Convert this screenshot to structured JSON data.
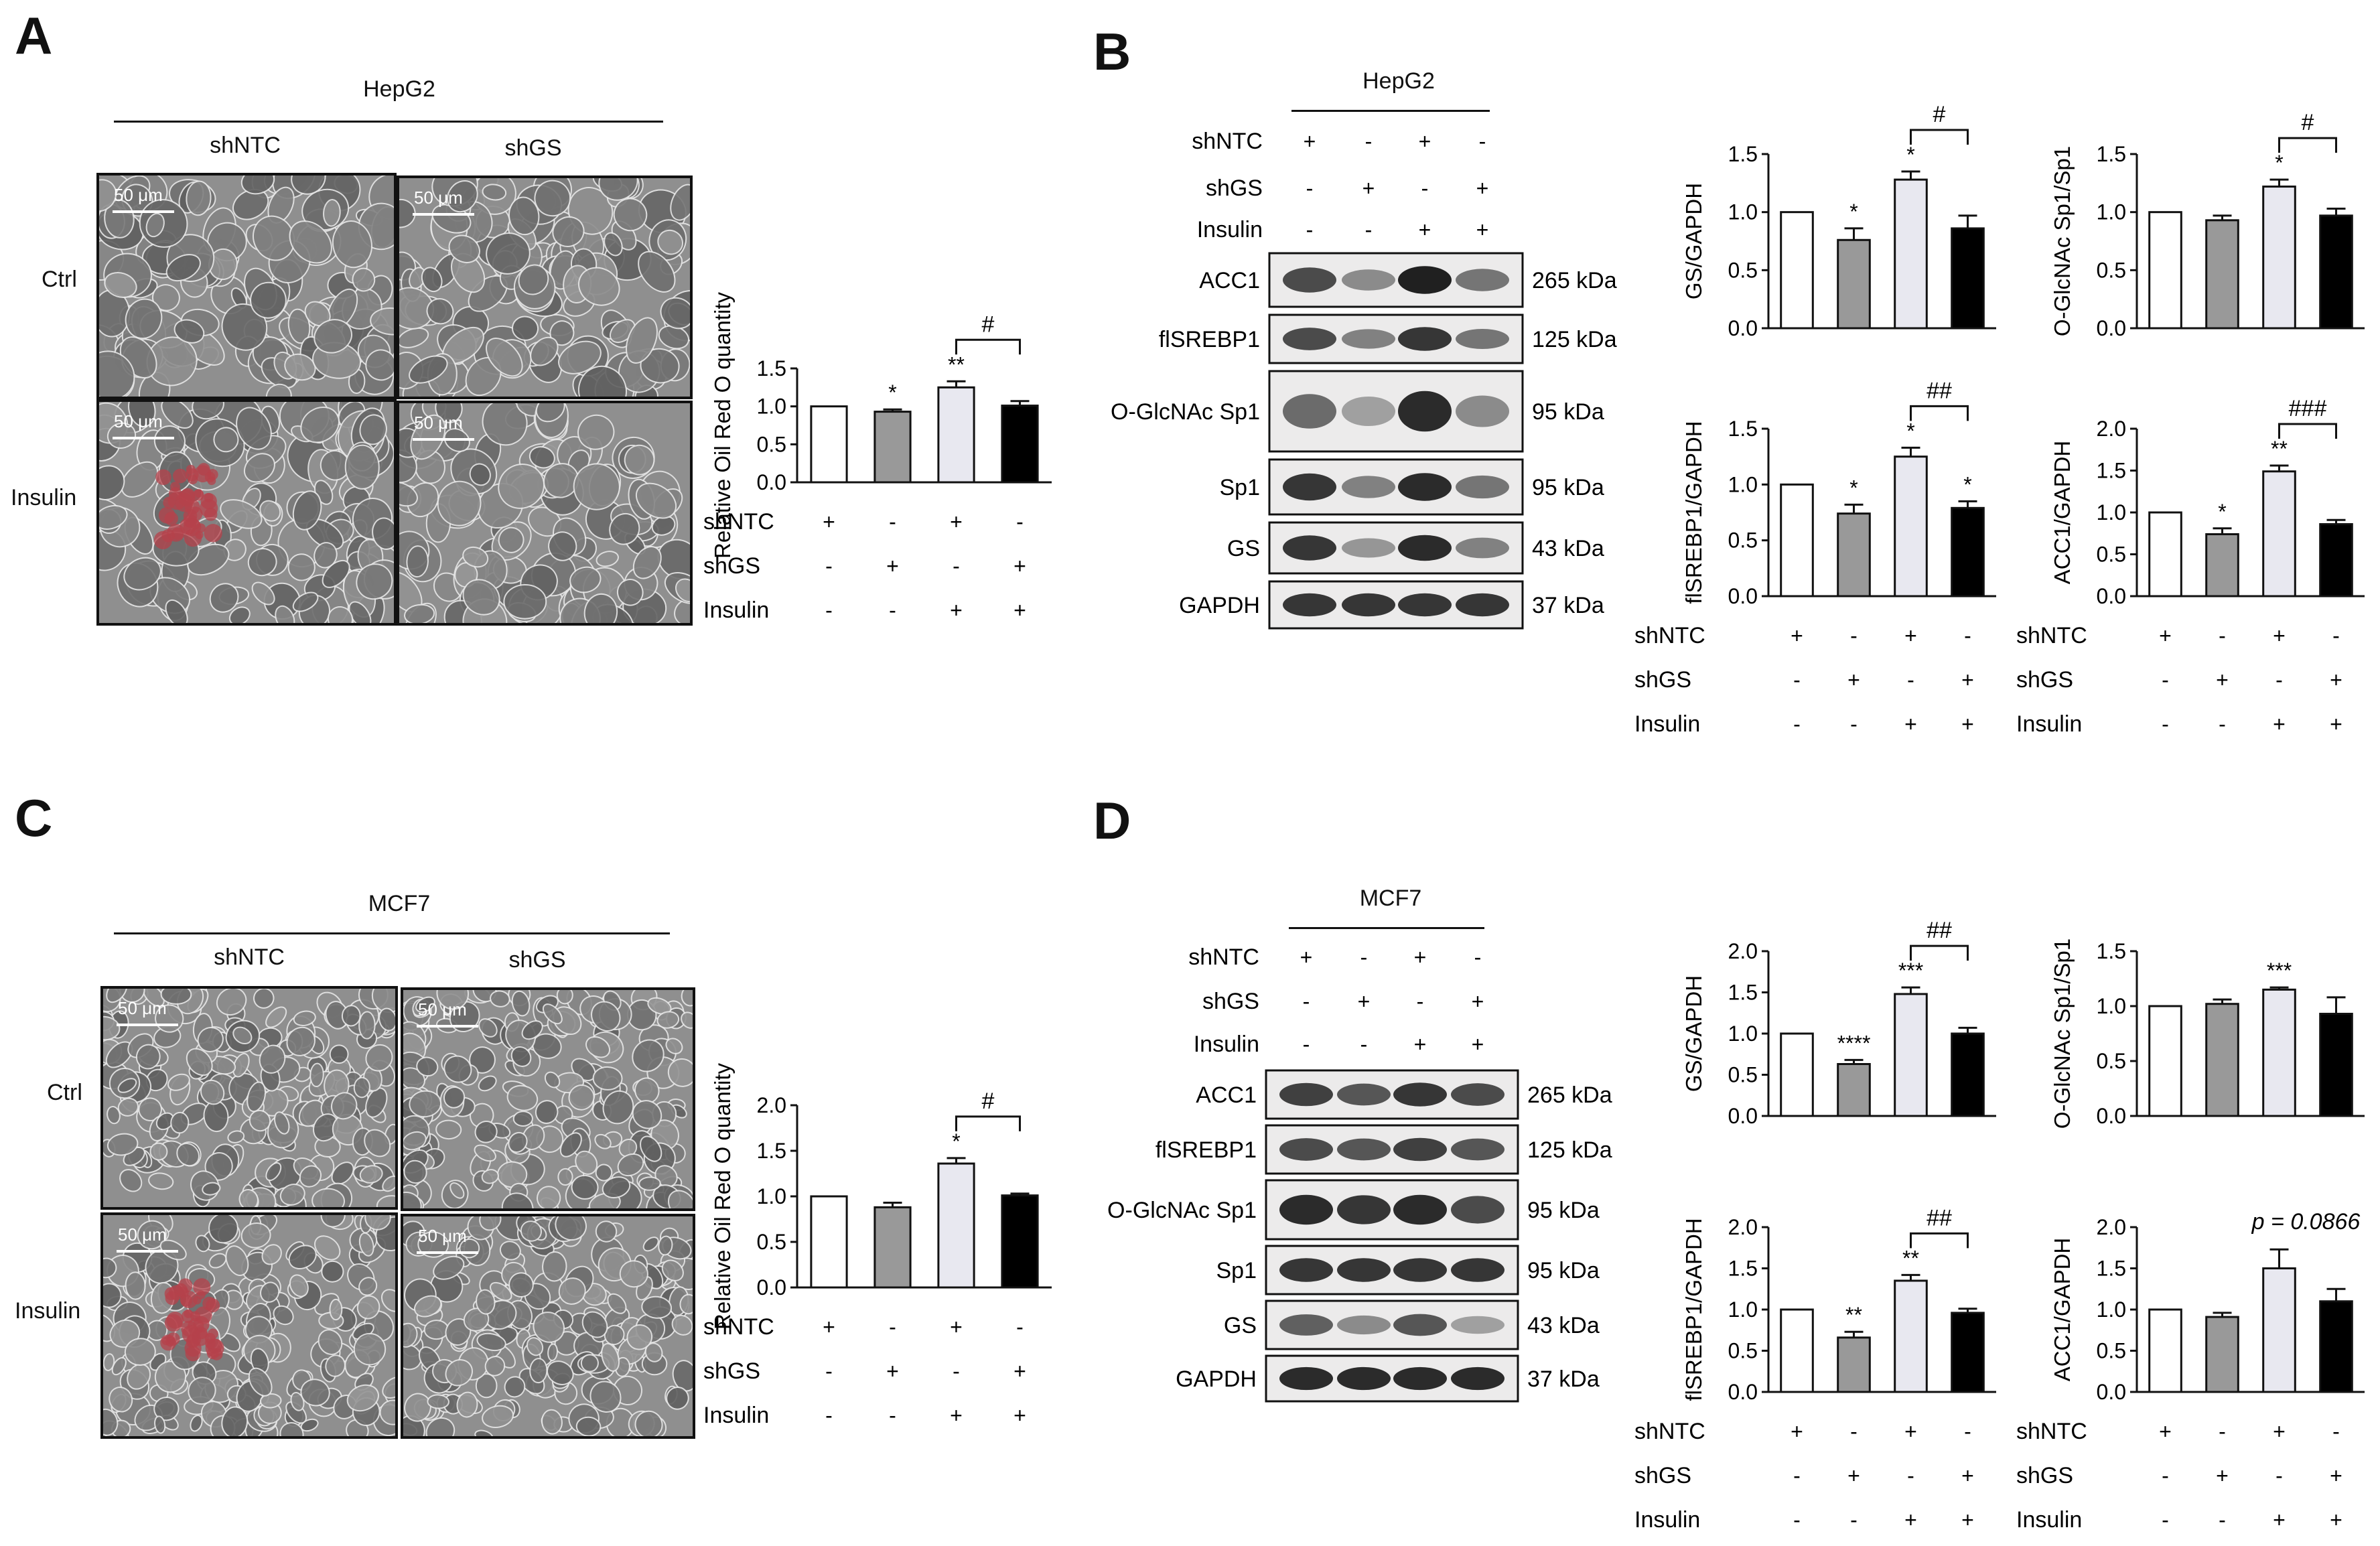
{
  "panels": {
    "A": {
      "letter": "A",
      "cell_line": "HepG2",
      "columns": [
        "shNTC",
        "shGS"
      ],
      "rows": [
        "Ctrl",
        "Insulin"
      ],
      "scale_bar": "50 μm"
    },
    "B": {
      "letter": "B",
      "cell_line": "HepG2",
      "conditions": [
        {
          "name": "shNTC",
          "signs": [
            "+",
            "-",
            "+",
            "-"
          ]
        },
        {
          "name": "shGS",
          "signs": [
            "-",
            "+",
            "-",
            "+"
          ]
        },
        {
          "name": "Insulin",
          "signs": [
            "-",
            "-",
            "+",
            "+"
          ]
        }
      ],
      "blots": [
        {
          "protein": "ACC1",
          "mw": "265 kDa",
          "intensity": [
            0.75,
            0.45,
            0.95,
            0.55
          ]
        },
        {
          "protein": "flSREBP1",
          "mw": "125 kDa",
          "intensity": [
            0.75,
            0.5,
            0.85,
            0.55
          ]
        },
        {
          "protein": "O-GlcNAc Sp1",
          "mw": "95 kDa",
          "intensity": [
            0.6,
            0.35,
            0.9,
            0.45
          ]
        },
        {
          "protein": "Sp1",
          "mw": "95 kDa",
          "intensity": [
            0.85,
            0.5,
            0.9,
            0.55
          ]
        },
        {
          "protein": "GS",
          "mw": "43 kDa",
          "intensity": [
            0.85,
            0.4,
            0.9,
            0.5
          ]
        },
        {
          "protein": "GAPDH",
          "mw": "37 kDa",
          "intensity": [
            0.85,
            0.85,
            0.85,
            0.85
          ]
        }
      ]
    },
    "C": {
      "letter": "C",
      "cell_line": "MCF7",
      "columns": [
        "shNTC",
        "shGS"
      ],
      "rows": [
        "Ctrl",
        "Insulin"
      ],
      "scale_bar": "50 μm"
    },
    "D": {
      "letter": "D",
      "cell_line": "MCF7",
      "conditions": [
        {
          "name": "shNTC",
          "signs": [
            "+",
            "-",
            "+",
            "-"
          ]
        },
        {
          "name": "shGS",
          "signs": [
            "-",
            "+",
            "-",
            "+"
          ]
        },
        {
          "name": "Insulin",
          "signs": [
            "-",
            "-",
            "+",
            "+"
          ]
        }
      ],
      "blots": [
        {
          "protein": "ACC1",
          "mw": "265 kDa",
          "intensity": [
            0.8,
            0.7,
            0.85,
            0.75
          ]
        },
        {
          "protein": "flSREBP1",
          "mw": "125 kDa",
          "intensity": [
            0.75,
            0.7,
            0.8,
            0.7
          ]
        },
        {
          "protein": "O-GlcNAc Sp1",
          "mw": "95 kDa",
          "intensity": [
            0.9,
            0.85,
            0.9,
            0.75
          ]
        },
        {
          "protein": "Sp1",
          "mw": "95 kDa",
          "intensity": [
            0.85,
            0.85,
            0.85,
            0.85
          ]
        },
        {
          "protein": "GS",
          "mw": "43 kDa",
          "intensity": [
            0.65,
            0.45,
            0.7,
            0.35
          ]
        },
        {
          "protein": "GAPDH",
          "mw": "37 kDa",
          "intensity": [
            0.9,
            0.9,
            0.9,
            0.9
          ]
        }
      ]
    }
  },
  "chart_data": [
    {
      "id": "A-oro",
      "type": "bar",
      "ylabel": "Relative Oil Red O quantity",
      "ylim": [
        0,
        1.5
      ],
      "yticks": [
        "0.0",
        "0.5",
        "1.0",
        "1.5"
      ],
      "values": [
        1.0,
        0.93,
        1.25,
        1.01
      ],
      "errors": [
        0,
        0.03,
        0.08,
        0.06
      ],
      "stars": [
        "",
        "*",
        "**",
        ""
      ],
      "bracket": "#",
      "conditions": [
        {
          "name": "shNTC",
          "signs": [
            "+",
            "-",
            "+",
            "-"
          ]
        },
        {
          "name": "shGS",
          "signs": [
            "-",
            "+",
            "-",
            "+"
          ]
        },
        {
          "name": "Insulin",
          "signs": [
            "-",
            "-",
            "+",
            "+"
          ]
        }
      ]
    },
    {
      "id": "B-gs",
      "type": "bar",
      "ylabel": "GS/GAPDH",
      "ylim": [
        0,
        1.5
      ],
      "yticks": [
        "0.0",
        "0.5",
        "1.0",
        "1.5"
      ],
      "values": [
        1.0,
        0.76,
        1.28,
        0.86
      ],
      "errors": [
        0,
        0.1,
        0.07,
        0.11
      ],
      "stars": [
        "",
        "*",
        "*",
        ""
      ],
      "bracket": "#",
      "conditions": []
    },
    {
      "id": "B-oglc",
      "type": "bar",
      "ylabel": "O-GlcNAc Sp1/Sp1",
      "ylim": [
        0,
        1.5
      ],
      "yticks": [
        "0.0",
        "0.5",
        "1.0",
        "1.5"
      ],
      "values": [
        1.0,
        0.93,
        1.22,
        0.97
      ],
      "errors": [
        0,
        0.04,
        0.06,
        0.06
      ],
      "stars": [
        "",
        "",
        "*",
        ""
      ],
      "bracket": "#",
      "conditions": []
    },
    {
      "id": "B-srebp",
      "type": "bar",
      "ylabel": "flSREBP1/GAPDH",
      "ylim": [
        0,
        1.5
      ],
      "yticks": [
        "0.0",
        "0.5",
        "1.0",
        "1.5"
      ],
      "values": [
        1.0,
        0.74,
        1.25,
        0.79
      ],
      "errors": [
        0,
        0.08,
        0.08,
        0.06
      ],
      "stars": [
        "",
        "*",
        "*",
        "*"
      ],
      "bracket": "##",
      "conditions": [
        {
          "name": "shNTC",
          "signs": [
            "+",
            "-",
            "+",
            "-"
          ]
        },
        {
          "name": "shGS",
          "signs": [
            "-",
            "+",
            "-",
            "+"
          ]
        },
        {
          "name": "Insulin",
          "signs": [
            "-",
            "-",
            "+",
            "+"
          ]
        }
      ]
    },
    {
      "id": "B-acc1",
      "type": "bar",
      "ylabel": "ACC1/GAPDH",
      "ylim": [
        0,
        2.0
      ],
      "yticks": [
        "0.0",
        "0.5",
        "1.0",
        "1.5",
        "2.0"
      ],
      "values": [
        1.0,
        0.74,
        1.49,
        0.86
      ],
      "errors": [
        0,
        0.07,
        0.07,
        0.05
      ],
      "stars": [
        "",
        "*",
        "**",
        ""
      ],
      "bracket": "###",
      "conditions": [
        {
          "name": "shNTC",
          "signs": [
            "+",
            "-",
            "+",
            "-"
          ]
        },
        {
          "name": "shGS",
          "signs": [
            "-",
            "+",
            "-",
            "+"
          ]
        },
        {
          "name": "Insulin",
          "signs": [
            "-",
            "-",
            "+",
            "+"
          ]
        }
      ]
    },
    {
      "id": "C-oro",
      "type": "bar",
      "ylabel": "Relative Oil Red O quantity",
      "ylim": [
        0,
        2.0
      ],
      "yticks": [
        "0.0",
        "0.5",
        "1.0",
        "1.5",
        "2.0"
      ],
      "values": [
        1.0,
        0.88,
        1.36,
        1.01
      ],
      "errors": [
        0,
        0.05,
        0.06,
        0.02
      ],
      "stars": [
        "",
        "",
        "*",
        ""
      ],
      "bracket": "#",
      "conditions": [
        {
          "name": "shNTC",
          "signs": [
            "+",
            "-",
            "+",
            "-"
          ]
        },
        {
          "name": "shGS",
          "signs": [
            "-",
            "+",
            "-",
            "+"
          ]
        },
        {
          "name": "Insulin",
          "signs": [
            "-",
            "-",
            "+",
            "+"
          ]
        }
      ]
    },
    {
      "id": "D-gs",
      "type": "bar",
      "ylabel": "GS/GAPDH",
      "ylim": [
        0,
        2.0
      ],
      "yticks": [
        "0.0",
        "0.5",
        "1.0",
        "1.5",
        "2.0"
      ],
      "values": [
        1.0,
        0.63,
        1.48,
        1.0
      ],
      "errors": [
        0,
        0.05,
        0.08,
        0.07
      ],
      "stars": [
        "",
        "****",
        "***",
        ""
      ],
      "bracket": "##",
      "conditions": []
    },
    {
      "id": "D-oglc",
      "type": "bar",
      "ylabel": "O-GlcNAc Sp1/Sp1",
      "ylim": [
        0,
        1.5
      ],
      "yticks": [
        "0.0",
        "0.5",
        "1.0",
        "1.5"
      ],
      "values": [
        1.0,
        1.02,
        1.15,
        0.93
      ],
      "errors": [
        0,
        0.04,
        0.02,
        0.15
      ],
      "stars": [
        "",
        "",
        "***",
        ""
      ],
      "bracket": "",
      "conditions": []
    },
    {
      "id": "D-srebp",
      "type": "bar",
      "ylabel": "flSREBP1/GAPDH",
      "ylim": [
        0,
        2.0
      ],
      "yticks": [
        "0.0",
        "0.5",
        "1.0",
        "1.5",
        "2.0"
      ],
      "values": [
        1.0,
        0.66,
        1.35,
        0.96
      ],
      "errors": [
        0,
        0.07,
        0.07,
        0.05
      ],
      "stars": [
        "",
        "**",
        "**",
        ""
      ],
      "bracket": "##",
      "conditions": [
        {
          "name": "shNTC",
          "signs": [
            "+",
            "-",
            "+",
            "-"
          ]
        },
        {
          "name": "shGS",
          "signs": [
            "-",
            "+",
            "-",
            "+"
          ]
        },
        {
          "name": "Insulin",
          "signs": [
            "-",
            "-",
            "+",
            "+"
          ]
        }
      ]
    },
    {
      "id": "D-acc1",
      "type": "bar",
      "ylabel": "ACC1/GAPDH",
      "ylim": [
        0,
        2.0
      ],
      "yticks": [
        "0.0",
        "0.5",
        "1.0",
        "1.5",
        "2.0"
      ],
      "values": [
        1.0,
        0.91,
        1.5,
        1.1
      ],
      "errors": [
        0,
        0.05,
        0.23,
        0.15
      ],
      "stars": [
        "",
        "",
        "",
        ""
      ],
      "bracket": "",
      "annotation": "p = 0.0866",
      "conditions": [
        {
          "name": "shNTC",
          "signs": [
            "+",
            "-",
            "+",
            "-"
          ]
        },
        {
          "name": "shGS",
          "signs": [
            "-",
            "+",
            "-",
            "+"
          ]
        },
        {
          "name": "Insulin",
          "signs": [
            "-",
            "-",
            "+",
            "+"
          ]
        }
      ]
    }
  ],
  "colors": {
    "bar_fills": [
      "#ffffff",
      "#999999",
      "#e8e8f0",
      "#000000"
    ],
    "stain_red": "#b5414b",
    "micro_bg": "#8f8f8f"
  }
}
